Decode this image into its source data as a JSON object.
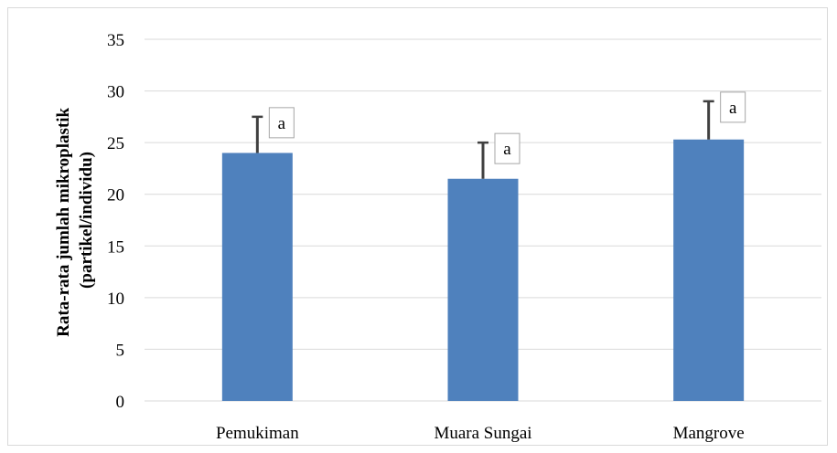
{
  "chart_data": {
    "type": "bar",
    "title": "",
    "xlabel": "",
    "ylabel_line1": "Rata-rata jumlah mikroplastik",
    "ylabel_line2": "(partikel/individu)",
    "categories": [
      "Pemukiman",
      "Muara Sungai",
      "Mangrove"
    ],
    "values": [
      24.0,
      21.5,
      25.3
    ],
    "error_plus": [
      3.5,
      3.5,
      3.7
    ],
    "annotations": [
      "a",
      "a",
      "a"
    ],
    "ylim": [
      0,
      35
    ],
    "y_ticks": [
      "0",
      "5",
      "10",
      "15",
      "20",
      "25",
      "30",
      "35"
    ],
    "grid": true,
    "legend": "none",
    "bar_color": "#4f81bd",
    "error_bar_color": "#404040"
  }
}
